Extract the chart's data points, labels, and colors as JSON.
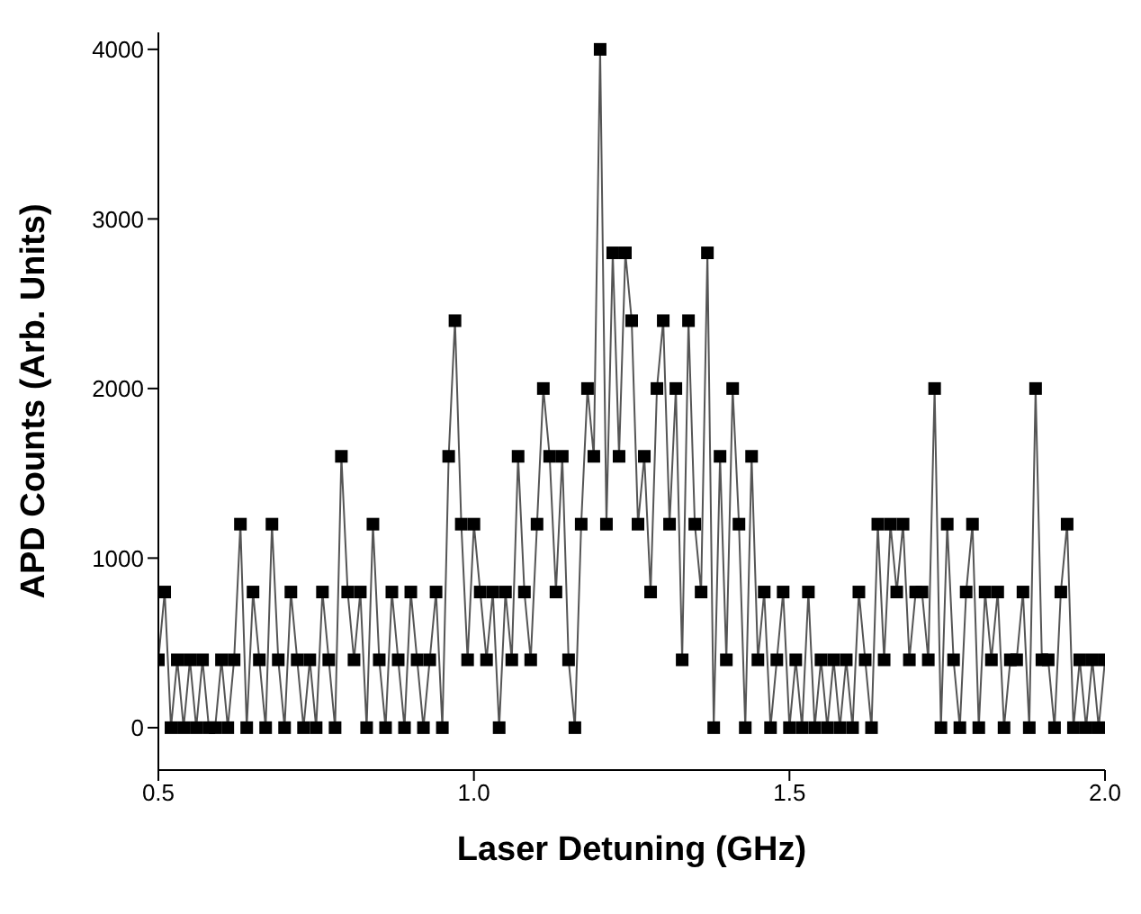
{
  "chart_data": {
    "type": "line",
    "xlabel": "Laser Detuning (GHz)",
    "ylabel": "APD Counts (Arb. Units)",
    "x": [
      0.5,
      0.51,
      0.52,
      0.53,
      0.54,
      0.55,
      0.56,
      0.57,
      0.58,
      0.59,
      0.6,
      0.61,
      0.62,
      0.63,
      0.64,
      0.65,
      0.66,
      0.67,
      0.68,
      0.69,
      0.7,
      0.71,
      0.72,
      0.73,
      0.74,
      0.75,
      0.76,
      0.77,
      0.78,
      0.79,
      0.8,
      0.81,
      0.82,
      0.83,
      0.84,
      0.85,
      0.86,
      0.87,
      0.88,
      0.89,
      0.9,
      0.91,
      0.92,
      0.93,
      0.94,
      0.95,
      0.96,
      0.97,
      0.98,
      0.99,
      1.0,
      1.01,
      1.02,
      1.03,
      1.04,
      1.05,
      1.06,
      1.07,
      1.08,
      1.09,
      1.1,
      1.11,
      1.12,
      1.13,
      1.14,
      1.15,
      1.16,
      1.17,
      1.18,
      1.19,
      1.2,
      1.21,
      1.22,
      1.23,
      1.24,
      1.25,
      1.26,
      1.27,
      1.28,
      1.29,
      1.3,
      1.31,
      1.32,
      1.33,
      1.34,
      1.35,
      1.36,
      1.37,
      1.38,
      1.39,
      1.4,
      1.41,
      1.42,
      1.43,
      1.44,
      1.45,
      1.46,
      1.47,
      1.48,
      1.49,
      1.5,
      1.51,
      1.52,
      1.53,
      1.54,
      1.55,
      1.56,
      1.57,
      1.58,
      1.59,
      1.6,
      1.61,
      1.62,
      1.63,
      1.64,
      1.65,
      1.66,
      1.67,
      1.68,
      1.69,
      1.7,
      1.71,
      1.72,
      1.73,
      1.74,
      1.75,
      1.76,
      1.77,
      1.78,
      1.79,
      1.8,
      1.81,
      1.82,
      1.83,
      1.84,
      1.85,
      1.86,
      1.87,
      1.88,
      1.89,
      1.9,
      1.91,
      1.92,
      1.93,
      1.94,
      1.95,
      1.96,
      1.97,
      1.98,
      1.99,
      2.0
    ],
    "series": [
      {
        "color": "#000000",
        "values": [
          400,
          800,
          0,
          400,
          0,
          400,
          0,
          400,
          0,
          0,
          400,
          0,
          400,
          1200,
          0,
          800,
          400,
          0,
          1200,
          400,
          0,
          800,
          400,
          0,
          400,
          0,
          800,
          400,
          0,
          1600,
          800,
          400,
          800,
          0,
          1200,
          400,
          0,
          800,
          400,
          0,
          800,
          400,
          0,
          400,
          800,
          0,
          1600,
          2400,
          1200,
          400,
          1200,
          800,
          400,
          800,
          0,
          800,
          400,
          1600,
          800,
          400,
          1200,
          2000,
          1600,
          800,
          1600,
          400,
          0,
          1200,
          2000,
          1600,
          4000,
          1200,
          2800,
          1600,
          2800,
          2400,
          1200,
          1600,
          800,
          2000,
          2400,
          1200,
          2000,
          400,
          2400,
          1200,
          800,
          2800,
          0,
          1600,
          400,
          2000,
          1200,
          0,
          1600,
          400,
          800,
          0,
          400,
          800,
          0,
          400,
          0,
          800,
          0,
          400,
          0,
          400,
          0,
          400,
          0,
          800,
          400,
          0,
          1200,
          400,
          1200,
          800,
          1200,
          400,
          800,
          800,
          400,
          2000,
          0,
          1200,
          400,
          0,
          800,
          1200,
          0,
          800,
          400,
          800,
          0,
          400,
          400,
          800,
          0,
          2000,
          400,
          400,
          0,
          800,
          1200,
          0,
          400,
          0,
          400,
          0,
          400
        ]
      }
    ],
    "xlim": [
      0.5,
      2.0
    ],
    "xticks": [
      {
        "value": 0.5,
        "label": "0.5"
      },
      {
        "value": 1.0,
        "label": "1.0"
      },
      {
        "value": 1.5,
        "label": "1.5"
      },
      {
        "value": 2.0,
        "label": "2.0"
      }
    ],
    "ylim": [
      -250,
      4100
    ],
    "yticks": [
      0,
      1000,
      2000,
      3000,
      4000
    ],
    "marker": "square",
    "line_style": "solid",
    "grid": false,
    "legend": false
  }
}
